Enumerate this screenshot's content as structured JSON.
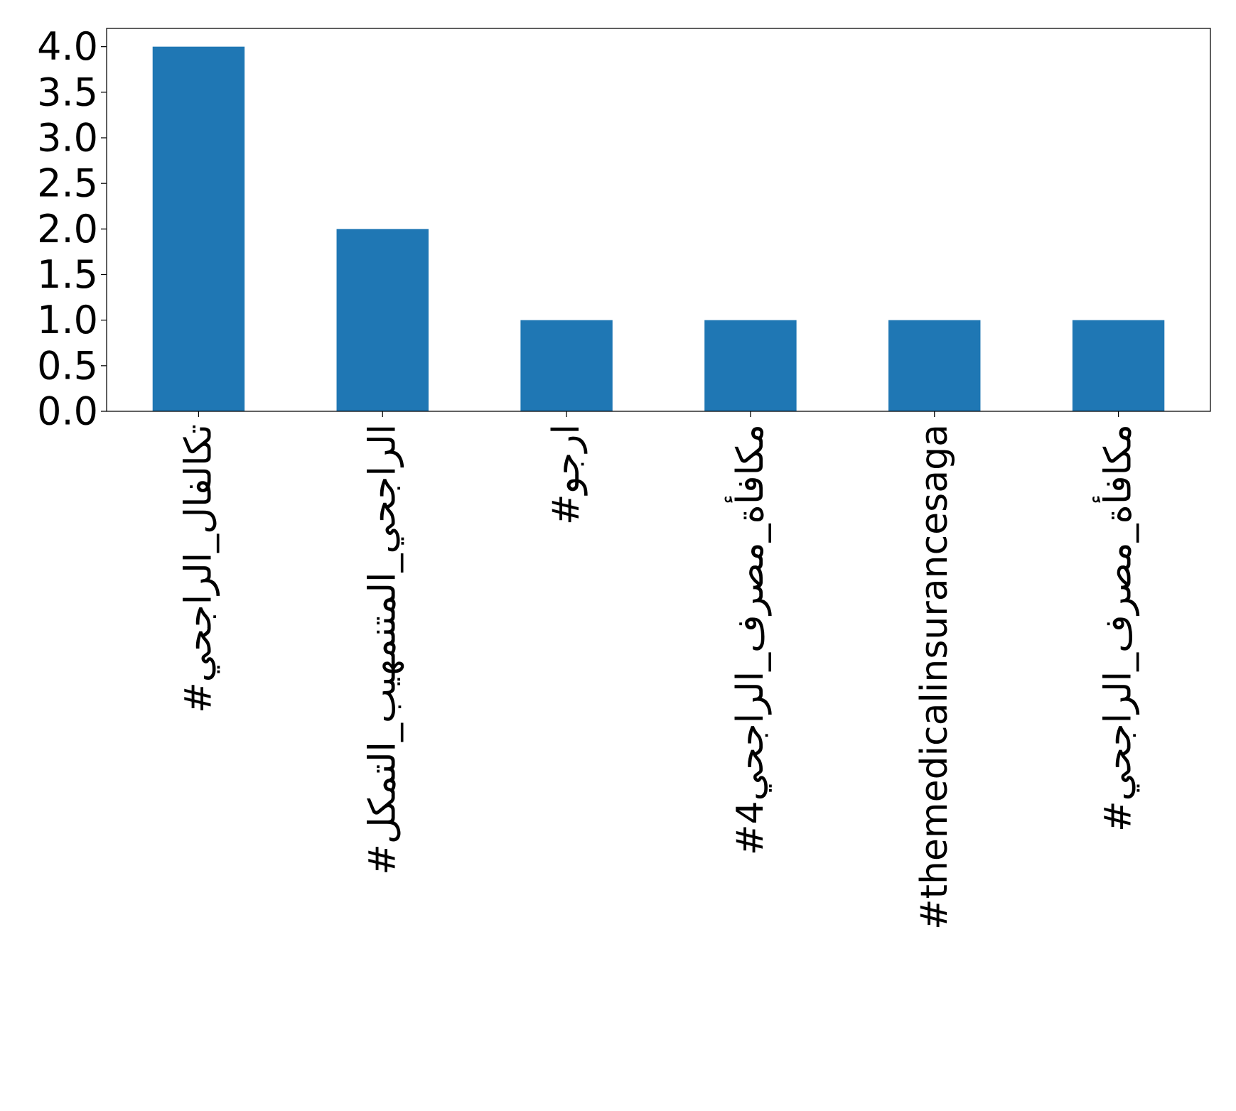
{
  "chart_data": {
    "type": "bar",
    "title": "",
    "xlabel": "",
    "ylabel": "",
    "categories": [
      "#تكالفال_الراجحي",
      "#الراجحي_المتنمهيب_التمكل",
      "#ارجو",
      "#مكافأة_مصرف_الراجحي4",
      "#themedicalinsurancesaga",
      "#مكافأة_مصرف_الراجحي"
    ],
    "values": [
      4,
      2,
      1,
      1,
      1,
      1
    ],
    "ylim": [
      0,
      4.2
    ],
    "yticks": [
      "0.0",
      "0.5",
      "1.0",
      "1.5",
      "2.0",
      "2.5",
      "3.0",
      "3.5",
      "4.0"
    ],
    "bar_color": "#1f77b4",
    "grid": false,
    "legend": "none"
  }
}
